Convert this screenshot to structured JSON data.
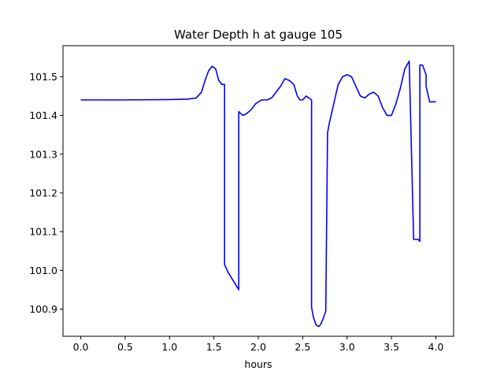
{
  "chart_data": {
    "type": "line",
    "title": "Water Depth h at gauge 105",
    "xlabel": "hours",
    "ylabel": "",
    "xlim": [
      -0.2,
      4.2
    ],
    "ylim": [
      100.83,
      101.58
    ],
    "xticks": [
      0.0,
      0.5,
      1.0,
      1.5,
      2.0,
      2.5,
      3.0,
      3.5,
      4.0
    ],
    "xtick_labels": [
      "0.0",
      "0.5",
      "1.0",
      "1.5",
      "2.0",
      "2.5",
      "3.0",
      "3.5",
      "4.0"
    ],
    "yticks": [
      100.9,
      101.0,
      101.1,
      101.2,
      101.3,
      101.4,
      101.5
    ],
    "ytick_labels": [
      "100.9",
      "101.0",
      "101.1",
      "101.2",
      "101.3",
      "101.4",
      "101.5"
    ],
    "grid": false,
    "series": [
      {
        "color": "#0000ff",
        "x": [
          0.0,
          0.5,
          1.0,
          1.2,
          1.3,
          1.36,
          1.4,
          1.44,
          1.48,
          1.52,
          1.555,
          1.59,
          1.62,
          1.62,
          1.66,
          1.7,
          1.74,
          1.78,
          1.78,
          1.8,
          1.83,
          1.87,
          1.92,
          1.97,
          2.0,
          2.04,
          2.1,
          2.15,
          2.2,
          2.25,
          2.3,
          2.35,
          2.4,
          2.44,
          2.47,
          2.5,
          2.5,
          2.54,
          2.54,
          2.6,
          2.6,
          2.62,
          2.65,
          2.68,
          2.7,
          2.73,
          2.76,
          2.78,
          2.78,
          2.8,
          2.85,
          2.9,
          2.95,
          3.0,
          3.05,
          3.1,
          3.15,
          3.2,
          3.25,
          3.3,
          3.35,
          3.4,
          3.45,
          3.5,
          3.55,
          3.6,
          3.65,
          3.7,
          3.75,
          3.8,
          3.82,
          3.82,
          3.85,
          3.89,
          3.89,
          3.93,
          3.96,
          4.0
        ],
        "y": [
          101.44,
          101.44,
          101.441,
          101.442,
          101.445,
          101.46,
          101.49,
          101.515,
          101.527,
          101.52,
          101.49,
          101.48,
          101.48,
          101.015,
          100.995,
          100.98,
          100.965,
          100.95,
          101.41,
          101.405,
          101.4,
          101.405,
          101.415,
          101.43,
          101.435,
          101.44,
          101.44,
          101.445,
          101.46,
          101.475,
          101.495,
          101.49,
          101.48,
          101.45,
          101.44,
          101.44,
          101.44,
          101.45,
          101.45,
          101.44,
          100.905,
          100.88,
          100.86,
          100.855,
          100.86,
          100.875,
          100.895,
          101.355,
          101.355,
          101.38,
          101.43,
          101.48,
          101.5,
          101.505,
          101.5,
          101.475,
          101.45,
          101.445,
          101.455,
          101.46,
          101.45,
          101.42,
          101.4,
          101.4,
          101.43,
          101.47,
          101.52,
          101.54,
          101.08,
          101.08,
          101.075,
          101.53,
          101.53,
          101.505,
          101.475,
          101.435,
          101.435,
          101.435
        ]
      }
    ]
  }
}
